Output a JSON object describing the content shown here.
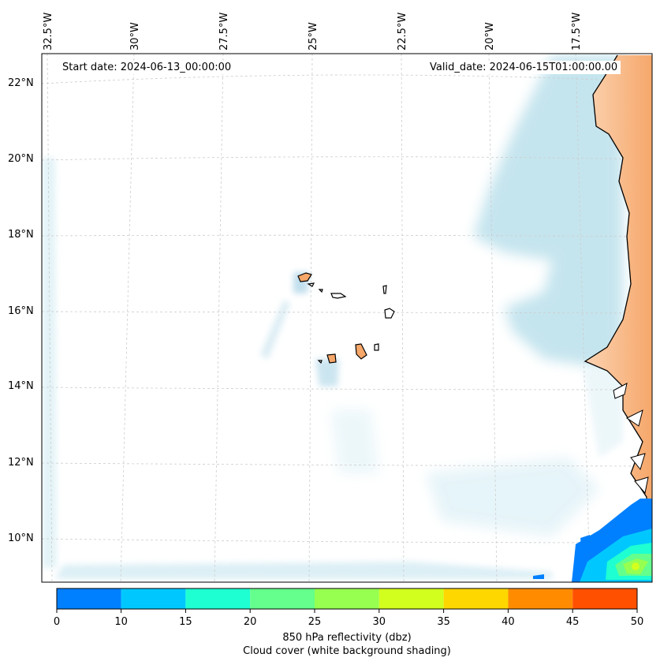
{
  "map": {
    "start_date_label": "Start date: 2024-06-13_00:00:00",
    "valid_date_label": "Valid_date: 2024-06-15T01:00:00.00",
    "longitude_labels": [
      "32.5°W",
      "30°W",
      "27.5°W",
      "25°W",
      "22.5°W",
      "20°W",
      "17.5°W"
    ],
    "latitude_labels": [
      "22°N",
      "20°N",
      "18°N",
      "16°N",
      "14°N",
      "12°N",
      "10°N"
    ]
  },
  "colorbar": {
    "ticks": [
      "0",
      "10",
      "15",
      "20",
      "25",
      "30",
      "35",
      "40",
      "45",
      "50"
    ],
    "colors": [
      "#0080ff",
      "#00c8ff",
      "#1effd2",
      "#64ff8c",
      "#96ff50",
      "#d2ff1e",
      "#ffd700",
      "#ff8c00",
      "#ff5000"
    ],
    "label_line1": "850 hPa reflectivity (dbz)",
    "label_line2": "Cloud cover (white background shading)"
  },
  "colors": {
    "land": "#f6a76a",
    "cloud": "#a9d8e6",
    "gridline": "#cccccc",
    "coastline": "#000000"
  }
}
